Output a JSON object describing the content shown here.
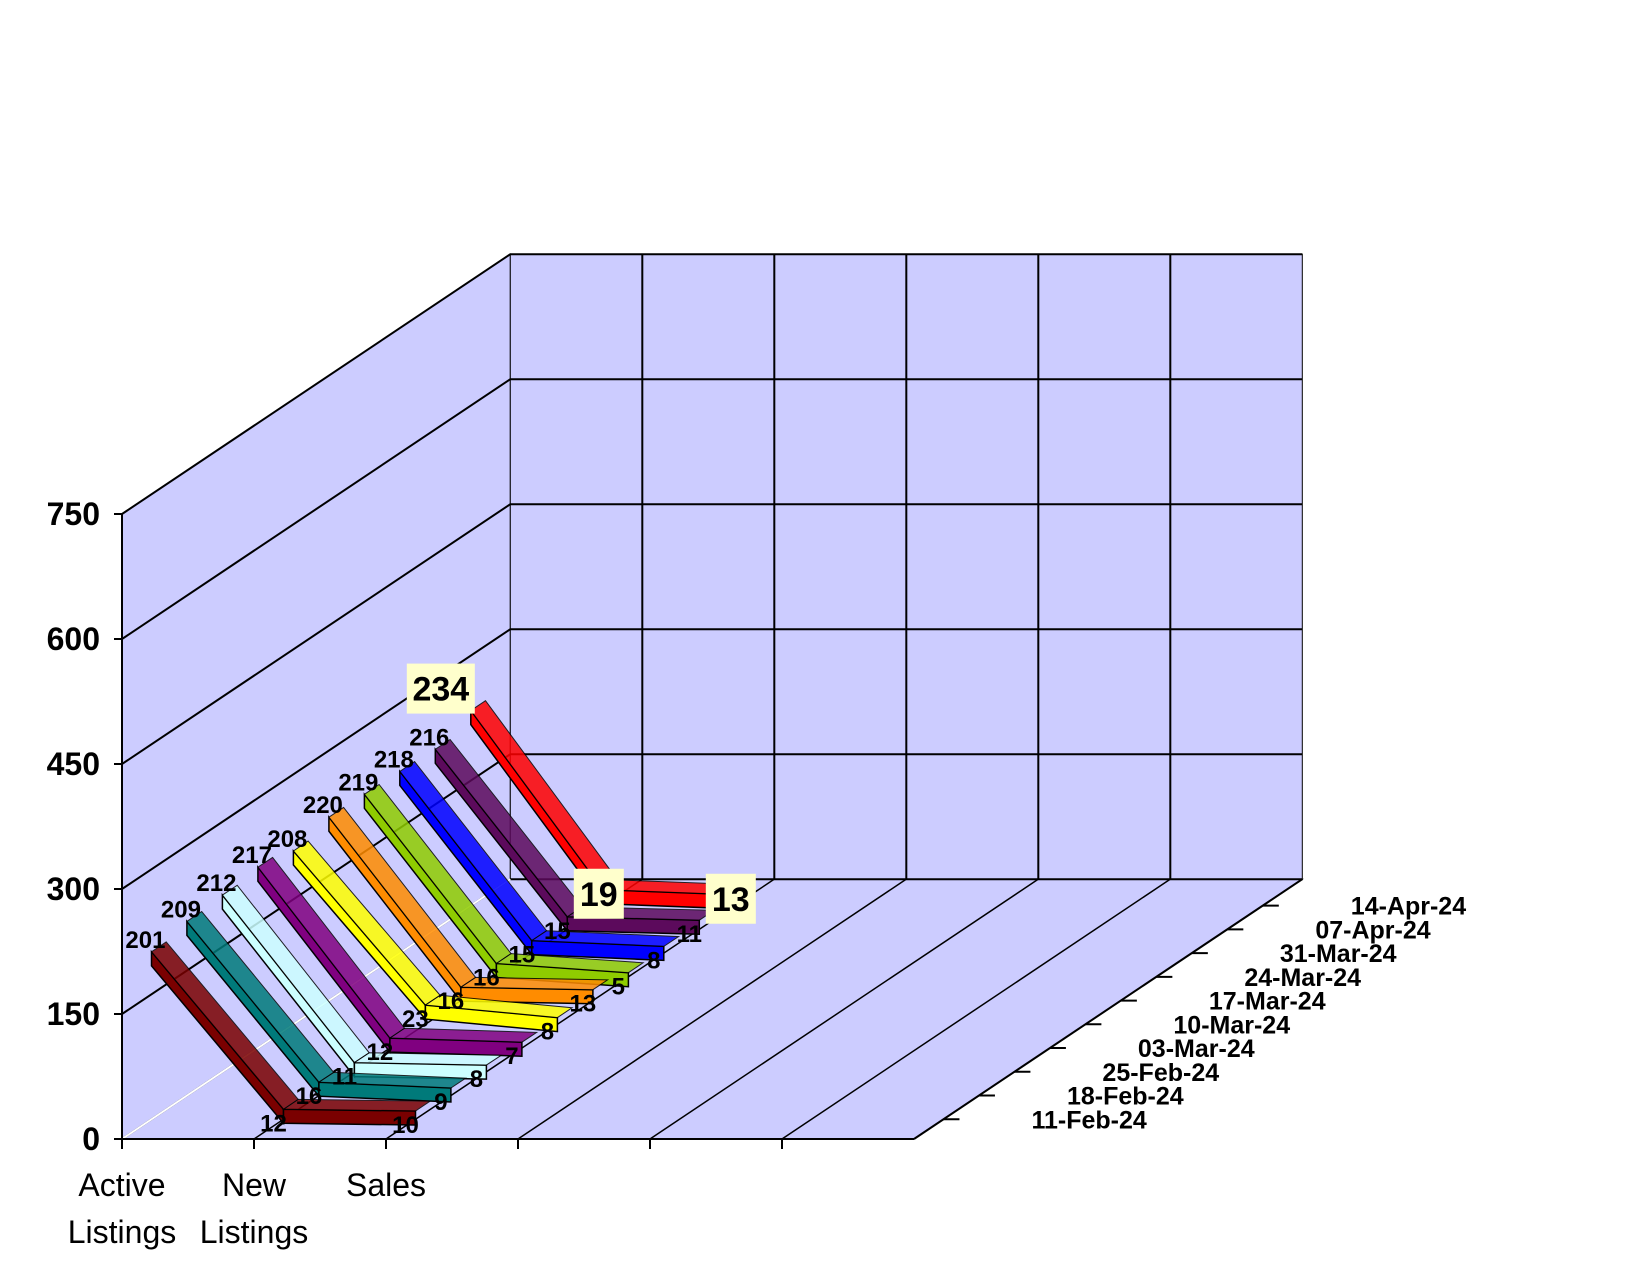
{
  "chart_data": {
    "type": "line",
    "view": "3d-ribbon",
    "categories": [
      "Active Listings",
      "New Listings",
      "Sales"
    ],
    "category_label_lines": [
      [
        "Active",
        "Listings"
      ],
      [
        "New",
        "Listings"
      ],
      [
        "Sales"
      ]
    ],
    "yticks": [
      0,
      150,
      300,
      450,
      600,
      750
    ],
    "ylim": [
      0,
      750
    ],
    "grid": true,
    "series": [
      {
        "name": "11-Feb-24",
        "values": [
          201,
          12,
          10
        ],
        "color": "#7a0000"
      },
      {
        "name": "18-Feb-24",
        "values": [
          209,
          16,
          9
        ],
        "color": "#007a7a"
      },
      {
        "name": "25-Feb-24",
        "values": [
          212,
          11,
          8
        ],
        "color": "#ccffff"
      },
      {
        "name": "03-Mar-24",
        "values": [
          217,
          12,
          7
        ],
        "color": "#800080"
      },
      {
        "name": "10-Mar-24",
        "values": [
          208,
          23,
          8
        ],
        "color": "#ffff00"
      },
      {
        "name": "17-Mar-24",
        "values": [
          220,
          16,
          13
        ],
        "color": "#ff8c00"
      },
      {
        "name": "24-Mar-24",
        "values": [
          219,
          16,
          5
        ],
        "color": "#8fcc00"
      },
      {
        "name": "31-Mar-24",
        "values": [
          218,
          15,
          8
        ],
        "color": "#0000ff"
      },
      {
        "name": "07-Apr-24",
        "values": [
          216,
          15,
          11
        ],
        "color": "#5c0a5c"
      },
      {
        "name": "14-Apr-24",
        "values": [
          234,
          19,
          13
        ],
        "color": "#ff0000"
      }
    ],
    "colors": {
      "wall": "#ccccff",
      "grid": "#000000",
      "highlight_label_bg": "#ffffcc"
    }
  }
}
